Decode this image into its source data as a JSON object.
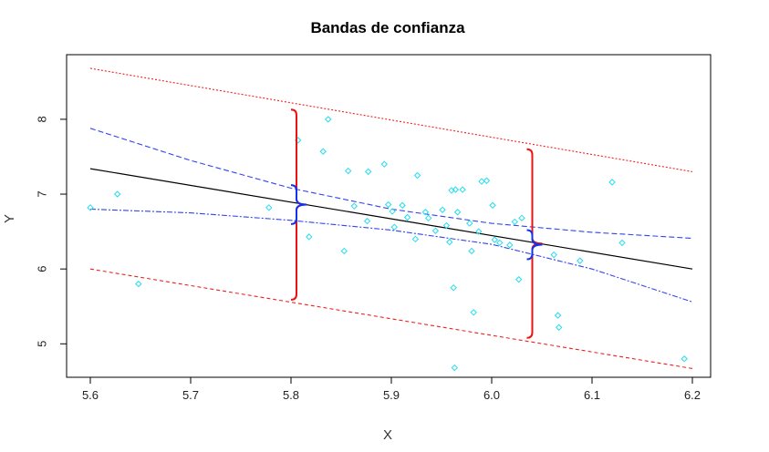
{
  "chart_data": {
    "type": "scatter",
    "title": "Bandas de confianza",
    "xlabel": "X",
    "ylabel": "Y",
    "xlim": [
      5.6,
      6.2
    ],
    "ylim": [
      4.5,
      8.75
    ],
    "xticks": [
      "5.6",
      "5.7",
      "5.8",
      "5.9",
      "6.0",
      "6.1",
      "6.2"
    ],
    "yticks": [
      "5",
      "6",
      "7",
      "8"
    ],
    "grid": false,
    "points": [
      [
        5.6,
        6.82
      ],
      [
        5.627,
        7.0
      ],
      [
        5.648,
        5.8
      ],
      [
        5.778,
        6.82
      ],
      [
        5.807,
        7.72
      ],
      [
        5.818,
        6.43
      ],
      [
        5.832,
        7.57
      ],
      [
        5.837,
        8.0
      ],
      [
        5.853,
        6.24
      ],
      [
        5.857,
        7.31
      ],
      [
        5.863,
        6.84
      ],
      [
        5.876,
        6.64
      ],
      [
        5.877,
        7.3
      ],
      [
        5.893,
        7.4
      ],
      [
        5.897,
        6.86
      ],
      [
        5.901,
        6.77
      ],
      [
        5.903,
        6.56
      ],
      [
        5.911,
        6.85
      ],
      [
        5.916,
        6.69
      ],
      [
        5.924,
        6.4
      ],
      [
        5.926,
        7.25
      ],
      [
        5.934,
        6.76
      ],
      [
        5.937,
        6.68
      ],
      [
        5.944,
        6.51
      ],
      [
        5.951,
        6.79
      ],
      [
        5.955,
        6.58
      ],
      [
        5.958,
        6.36
      ],
      [
        5.96,
        7.05
      ],
      [
        5.962,
        5.75
      ],
      [
        5.963,
        4.68
      ],
      [
        5.964,
        7.06
      ],
      [
        5.966,
        6.76
      ],
      [
        5.971,
        7.06
      ],
      [
        5.978,
        6.61
      ],
      [
        5.98,
        6.24
      ],
      [
        5.982,
        5.42
      ],
      [
        5.987,
        6.5
      ],
      [
        5.99,
        7.17
      ],
      [
        5.995,
        7.18
      ],
      [
        6.001,
        6.85
      ],
      [
        6.003,
        6.39
      ],
      [
        6.008,
        6.35
      ],
      [
        6.018,
        6.32
      ],
      [
        6.023,
        6.63
      ],
      [
        6.027,
        5.86
      ],
      [
        6.03,
        6.68
      ],
      [
        6.062,
        6.19
      ],
      [
        6.066,
        5.38
      ],
      [
        6.067,
        5.22
      ],
      [
        6.088,
        6.11
      ],
      [
        6.12,
        7.16
      ],
      [
        6.13,
        6.35
      ],
      [
        6.192,
        4.8
      ]
    ],
    "fit_line": {
      "x": [
        5.6,
        6.2
      ],
      "y": [
        7.34,
        6.0
      ]
    },
    "confidence_band": {
      "x": [
        5.6,
        5.7,
        5.8,
        5.9,
        6.0,
        6.1,
        6.2
      ],
      "upper": [
        7.88,
        7.45,
        7.08,
        6.8,
        6.61,
        6.49,
        6.41
      ],
      "lower": [
        6.8,
        6.75,
        6.65,
        6.52,
        6.33,
        6.0,
        5.56
      ]
    },
    "prediction_band": {
      "x": [
        5.6,
        6.2
      ],
      "upper": [
        8.68,
        7.3
      ],
      "lower": [
        6.0,
        4.67
      ]
    },
    "annotations": [
      {
        "type": "brace",
        "x": 5.8,
        "y_low": 5.59,
        "y_high": 8.13,
        "color": "#ee1111"
      },
      {
        "type": "brace",
        "x": 5.8,
        "y_low": 6.6,
        "y_high": 7.12,
        "color": "#1133ee"
      },
      {
        "type": "brace",
        "x": 6.035,
        "y_low": 5.08,
        "y_high": 7.6,
        "color": "#ee1111"
      },
      {
        "type": "brace",
        "x": 6.035,
        "y_low": 6.13,
        "y_high": 6.52,
        "color": "#1133ee"
      }
    ],
    "colors": {
      "points": "#22ddee",
      "fit_line": "#000000",
      "confidence_band": "#3344ee",
      "prediction_band": "#ee2222"
    }
  }
}
